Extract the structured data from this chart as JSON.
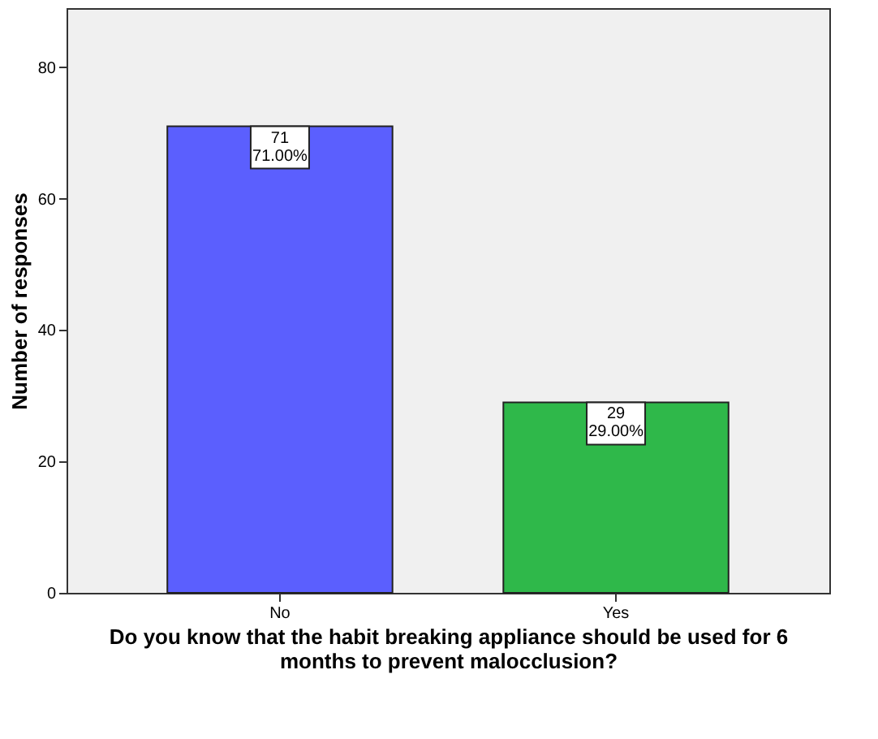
{
  "chart_data": {
    "type": "bar",
    "xlabel": "Do you know that the habit breaking appliance should be used for 6 months to prevent malocclusion?",
    "ylabel": "Number of responses",
    "categories": [
      "No",
      "Yes"
    ],
    "values": [
      71,
      29
    ],
    "colors": [
      "#5b5ffe",
      "#2fb84a"
    ],
    "value_labels": [
      "71\n71.00%",
      "29\n29.00%"
    ],
    "ylim": [
      0,
      89
    ],
    "yticks": [
      0,
      20,
      40,
      60,
      80
    ],
    "grid": false
  }
}
